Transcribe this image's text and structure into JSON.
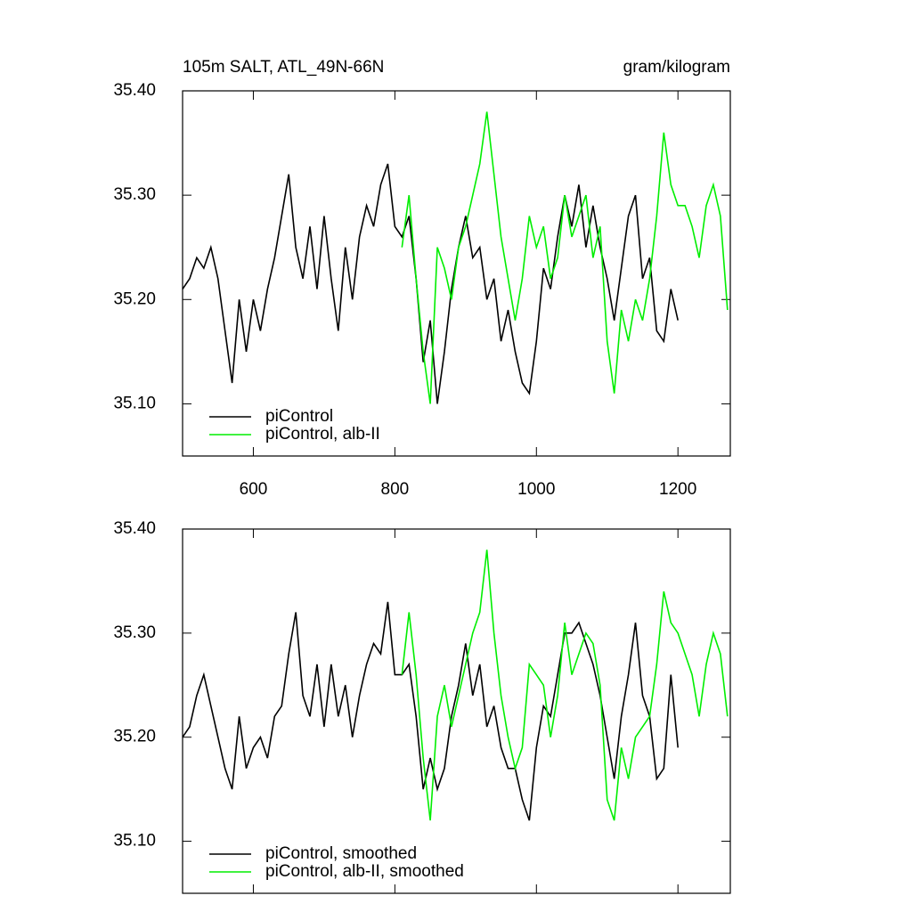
{
  "chart_data": [
    {
      "type": "line",
      "title_left": "105m SALT, ATL_49N-66N",
      "title_right": "gram/kilogram",
      "xlim": [
        500,
        1274
      ],
      "ylim": [
        35.05,
        35.4
      ],
      "xticks": [
        600,
        800,
        1000,
        1200
      ],
      "yticks": [
        {
          "value": 35.1,
          "label": "35.10"
        },
        {
          "value": 35.2,
          "label": "35.20"
        },
        {
          "value": 35.3,
          "label": "35.30"
        },
        {
          "value": 35.4,
          "label": "35.40"
        }
      ],
      "legend": "lower left",
      "series": [
        {
          "name": "piControl",
          "color": "#000000",
          "x": [
            500,
            510,
            520,
            530,
            540,
            550,
            560,
            570,
            580,
            590,
            600,
            610,
            620,
            630,
            640,
            650,
            660,
            670,
            680,
            690,
            700,
            710,
            720,
            730,
            740,
            750,
            760,
            770,
            780,
            790,
            800,
            810,
            820,
            830,
            840,
            850,
            860,
            870,
            880,
            890,
            900,
            910,
            920,
            930,
            940,
            950,
            960,
            970,
            980,
            990,
            1000,
            1010,
            1020,
            1030,
            1040,
            1050,
            1060,
            1070,
            1080,
            1090,
            1100,
            1110,
            1120,
            1130,
            1140,
            1150,
            1160,
            1170,
            1180,
            1190,
            1200
          ],
          "values": [
            35.21,
            35.22,
            35.24,
            35.23,
            35.25,
            35.22,
            35.17,
            35.12,
            35.2,
            35.15,
            35.2,
            35.17,
            35.21,
            35.24,
            35.28,
            35.32,
            35.25,
            35.22,
            35.27,
            35.21,
            35.28,
            35.22,
            35.17,
            35.25,
            35.2,
            35.26,
            35.29,
            35.27,
            35.31,
            35.33,
            35.27,
            35.26,
            35.28,
            35.22,
            35.14,
            35.18,
            35.1,
            35.15,
            35.21,
            35.25,
            35.28,
            35.24,
            35.25,
            35.2,
            35.22,
            35.16,
            35.19,
            35.15,
            35.12,
            35.11,
            35.16,
            35.23,
            35.21,
            35.26,
            35.3,
            35.27,
            35.31,
            35.25,
            35.29,
            35.25,
            35.22,
            35.18,
            35.23,
            35.28,
            35.3,
            35.22,
            35.24,
            35.17,
            35.16,
            35.21,
            35.18
          ]
        },
        {
          "name": "piControl, alb-II",
          "color": "#00ee00",
          "x": [
            810,
            820,
            830,
            840,
            850,
            860,
            870,
            880,
            890,
            900,
            910,
            920,
            930,
            940,
            950,
            960,
            970,
            980,
            990,
            1000,
            1010,
            1020,
            1030,
            1040,
            1050,
            1060,
            1070,
            1080,
            1090,
            1100,
            1110,
            1120,
            1130,
            1140,
            1150,
            1160,
            1170,
            1180,
            1190,
            1200,
            1210,
            1220,
            1230,
            1240,
            1250,
            1260,
            1270
          ],
          "values": [
            35.25,
            35.3,
            35.22,
            35.15,
            35.1,
            35.25,
            35.23,
            35.2,
            35.25,
            35.27,
            35.3,
            35.33,
            35.38,
            35.32,
            35.26,
            35.22,
            35.18,
            35.22,
            35.28,
            35.25,
            35.27,
            35.22,
            35.24,
            35.3,
            35.26,
            35.28,
            35.3,
            35.24,
            35.27,
            35.16,
            35.11,
            35.19,
            35.16,
            35.2,
            35.18,
            35.22,
            35.28,
            35.36,
            35.31,
            35.29,
            35.29,
            35.27,
            35.24,
            35.29,
            35.31,
            35.28,
            35.19
          ]
        }
      ]
    },
    {
      "type": "line",
      "xlim": [
        500,
        1274
      ],
      "ylim": [
        35.05,
        35.4
      ],
      "yticks": [
        {
          "value": 35.1,
          "label": "35.10"
        },
        {
          "value": 35.2,
          "label": "35.20"
        },
        {
          "value": 35.3,
          "label": "35.30"
        },
        {
          "value": 35.4,
          "label": "35.40"
        }
      ],
      "legend": "lower left",
      "series": [
        {
          "name": "piControl, smoothed",
          "color": "#000000",
          "x": [
            500,
            510,
            520,
            530,
            540,
            550,
            560,
            570,
            580,
            590,
            600,
            610,
            620,
            630,
            640,
            650,
            660,
            670,
            680,
            690,
            700,
            710,
            720,
            730,
            740,
            750,
            760,
            770,
            780,
            790,
            800,
            810,
            820,
            830,
            840,
            850,
            860,
            870,
            880,
            890,
            900,
            910,
            920,
            930,
            940,
            950,
            960,
            970,
            980,
            990,
            1000,
            1010,
            1020,
            1030,
            1040,
            1050,
            1060,
            1070,
            1080,
            1090,
            1100,
            1110,
            1120,
            1130,
            1140,
            1150,
            1160,
            1170,
            1180,
            1190,
            1200
          ],
          "values": [
            35.2,
            35.21,
            35.24,
            35.26,
            35.23,
            35.2,
            35.17,
            35.15,
            35.22,
            35.17,
            35.19,
            35.2,
            35.18,
            35.22,
            35.23,
            35.28,
            35.32,
            35.24,
            35.22,
            35.27,
            35.21,
            35.27,
            35.22,
            35.25,
            35.2,
            35.24,
            35.27,
            35.29,
            35.28,
            35.33,
            35.26,
            35.26,
            35.27,
            35.22,
            35.15,
            35.18,
            35.15,
            35.17,
            35.22,
            35.25,
            35.29,
            35.24,
            35.27,
            35.21,
            35.23,
            35.19,
            35.17,
            35.17,
            35.14,
            35.12,
            35.19,
            35.23,
            35.22,
            35.26,
            35.3,
            35.3,
            35.31,
            35.29,
            35.27,
            35.24,
            35.2,
            35.16,
            35.22,
            35.26,
            35.31,
            35.24,
            35.22,
            35.16,
            35.17,
            35.26,
            35.19
          ]
        },
        {
          "name": "piControl, alb-II, smoothed",
          "color": "#00ee00",
          "x": [
            810,
            820,
            830,
            840,
            850,
            860,
            870,
            880,
            890,
            900,
            910,
            920,
            930,
            940,
            950,
            960,
            970,
            980,
            990,
            1000,
            1010,
            1020,
            1030,
            1040,
            1050,
            1060,
            1070,
            1080,
            1090,
            1100,
            1110,
            1120,
            1130,
            1140,
            1150,
            1160,
            1170,
            1180,
            1190,
            1200,
            1210,
            1220,
            1230,
            1240,
            1250,
            1260,
            1270
          ],
          "values": [
            35.26,
            35.32,
            35.26,
            35.18,
            35.12,
            35.22,
            35.25,
            35.21,
            35.24,
            35.27,
            35.3,
            35.32,
            35.38,
            35.3,
            35.24,
            35.2,
            35.17,
            35.19,
            35.27,
            35.26,
            35.25,
            35.2,
            35.24,
            35.31,
            35.26,
            35.28,
            35.3,
            35.29,
            35.25,
            35.14,
            35.12,
            35.19,
            35.16,
            35.2,
            35.21,
            35.22,
            35.27,
            35.34,
            35.31,
            35.3,
            35.28,
            35.26,
            35.22,
            35.27,
            35.3,
            35.28,
            35.22
          ]
        }
      ]
    }
  ]
}
